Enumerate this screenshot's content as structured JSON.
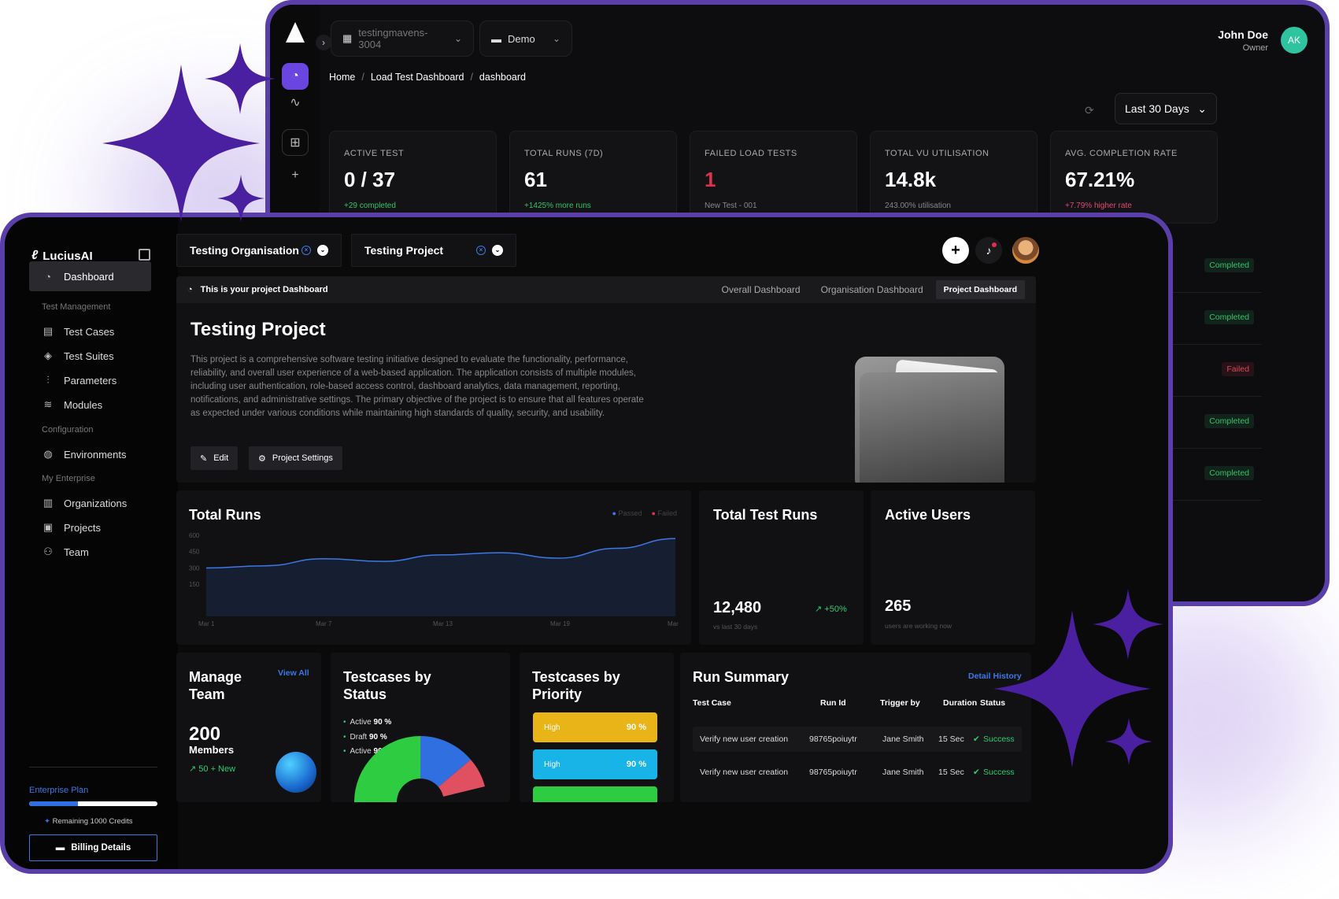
{
  "back": {
    "org_selector": "testingmavens-3004",
    "workspace_selector": "Demo",
    "user_name": "John Doe",
    "user_role": "Owner",
    "user_initials": "AK",
    "breadcrumbs": [
      "Home",
      "Load Test Dashboard",
      "dashboard"
    ],
    "range": "Last 30 Days",
    "kpis": [
      {
        "label": "ACTIVE TEST",
        "value": "0 / 37",
        "sub": "+29 completed"
      },
      {
        "label": "TOTAL RUNS (7D)",
        "value": "61",
        "sub": "+1425% more runs"
      },
      {
        "label": "FAILED LOAD TESTS",
        "value": "1",
        "sub": "New Test - 001"
      },
      {
        "label": "TOTAL VU UTILISATION",
        "value": "14.8k",
        "sub": "243.00% utilisation"
      },
      {
        "label": "AVG. COMPLETION RATE",
        "value": "67.21%",
        "sub": "+7.79% higher rate"
      }
    ],
    "statuses": [
      "Completed",
      "Completed",
      "Failed",
      "Completed",
      "Completed"
    ]
  },
  "front": {
    "brand": "LuciusAI",
    "nav": {
      "dashboard": "Dashboard",
      "section_test_mgmt": "Test Management",
      "test_cases": "Test Cases",
      "test_suites": "Test Suites",
      "parameters": "Parameters",
      "modules": "Modules",
      "section_config": "Configuration",
      "environments": "Environments",
      "section_enterprise": "My Enterprise",
      "organizations": "Organizations",
      "projects": "Projects",
      "team": "Team"
    },
    "plan": "Enterprise Plan",
    "credit_fraction": 0.38,
    "credits": "Remaining 1000 Credits",
    "billing": "Billing Details",
    "org_selector": "Testing Organisation",
    "project_selector": "Testing Project",
    "project_banner": "This is your project Dashboard",
    "tabs": [
      "Overall Dashboard",
      "Organisation Dashboard",
      "Project Dashboard"
    ],
    "project_title": "Testing Project",
    "project_desc": "This project is a comprehensive software testing initiative designed to evaluate the functionality, performance, reliability, and overall user experience of a web-based application. The application consists of multiple modules, including user authentication, role-based access control, dashboard analytics, data management, reporting, notifications, and administrative settings. The primary objective of the project is to ensure that all features operate as expected under various conditions while maintaining high standards of quality, security, and usability.",
    "edit": "Edit",
    "project_settings": "Project Settings",
    "total_runs": {
      "title": "Total Runs",
      "legend_passed": "Passed",
      "legend_failed": "Failed"
    },
    "total_test_runs": {
      "title": "Total Test Runs",
      "value": "12,480",
      "trend": "+50%",
      "note": "vs last 30 days"
    },
    "active_users": {
      "title": "Active Users",
      "value": "265",
      "note": "users are working now"
    },
    "manage_team": {
      "title": "Manage Team",
      "view_all": "View All",
      "count": "200",
      "members": "Members",
      "new": "50 + New"
    },
    "testcases_status": {
      "title": "Testcases by Status",
      "items": [
        {
          "label": "Active",
          "value": "90 %"
        },
        {
          "label": "Draft",
          "value": "90 %"
        },
        {
          "label": "Active",
          "value": "90 %"
        }
      ]
    },
    "testcases_priority": {
      "title": "Testcases by Priority",
      "items": [
        {
          "label": "High",
          "value": "90 %",
          "color": "#e8b418"
        },
        {
          "label": "High",
          "value": "90 %",
          "color": "#18b4e8"
        }
      ]
    },
    "run_summary": {
      "title": "Run Summary",
      "detail": "Detail History",
      "headers": [
        "Test Case",
        "Run Id",
        "Trigger by",
        "Duration",
        "Status"
      ],
      "rows": [
        [
          "Verify new user creation",
          "98765poiuytr",
          "Jane Smith",
          "15 Sec",
          "Success"
        ],
        [
          "Verify new user creation",
          "98765poiuytr",
          "Jane Smith",
          "15 Sec",
          "Success"
        ]
      ]
    }
  },
  "chart_data": {
    "type": "area",
    "title": "Total Runs",
    "x": [
      "Mar 1",
      "Mar 4",
      "Mar 7",
      "Mar 10",
      "Mar 13",
      "Mar 16",
      "Mar 19",
      "Mar 22",
      "Mar 25"
    ],
    "x_tick_labels": [
      "Mar 1",
      "Mar 7",
      "Mar 13",
      "Mar 19",
      "Mar"
    ],
    "series": [
      {
        "name": "Passed",
        "values": [
          300,
          320,
          385,
          360,
          420,
          440,
          390,
          480,
          570
        ]
      }
    ],
    "y_ticks": [
      600,
      450,
      300,
      150
    ],
    "ylim": [
      0,
      650
    ],
    "colors": {
      "line": "#3c78e6"
    }
  }
}
